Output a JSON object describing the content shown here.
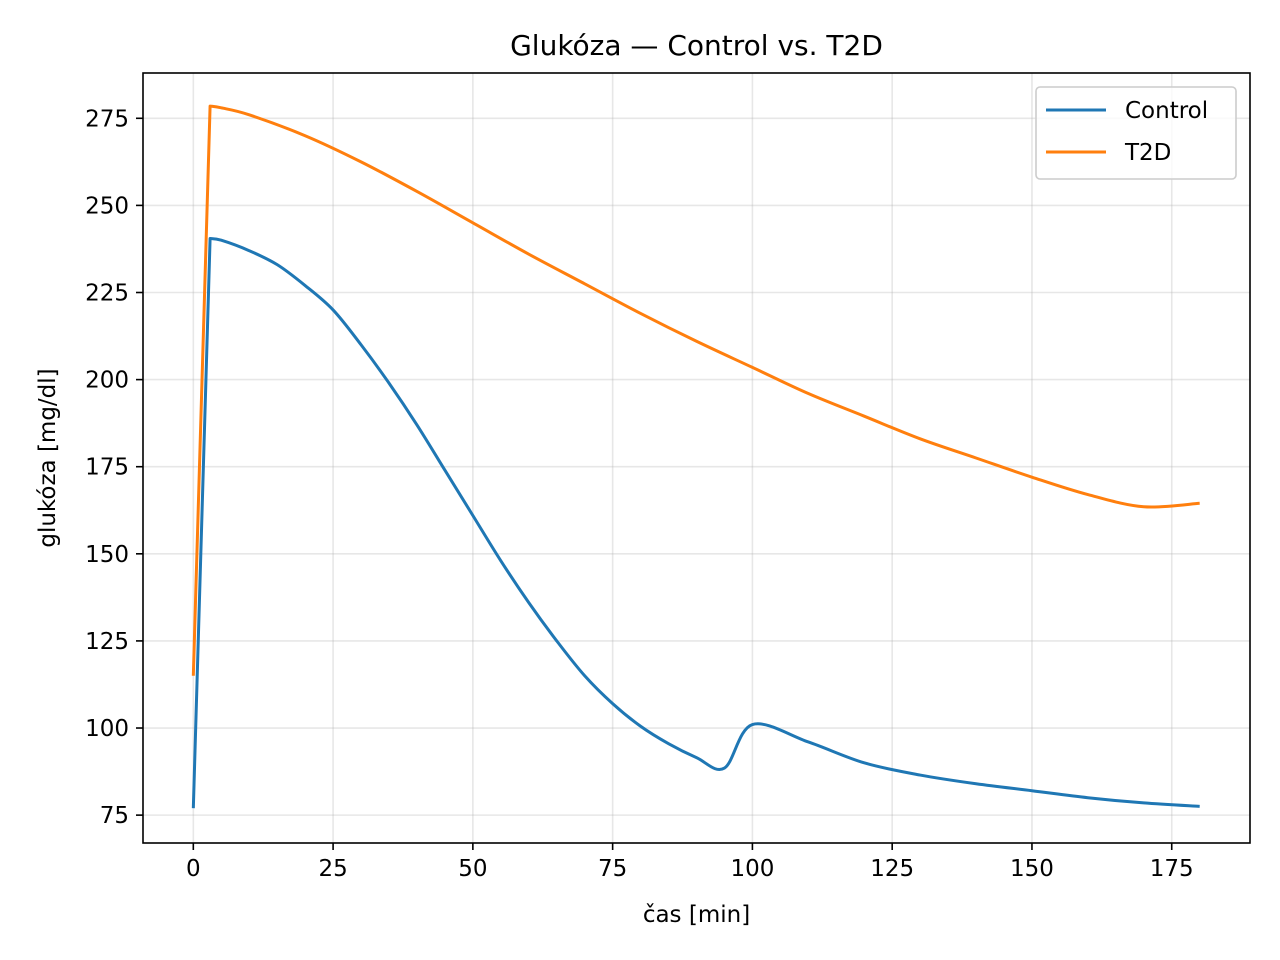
{
  "chart_data": {
    "type": "line",
    "title": "Glukóza — Control vs. T2D",
    "xlabel": "čas [min]",
    "ylabel": "glukóza [mg/dl]",
    "xlim": [
      -9,
      189
    ],
    "ylim": [
      67,
      288
    ],
    "xticks": [
      0,
      25,
      50,
      75,
      100,
      125,
      150,
      175
    ],
    "yticks": [
      75,
      100,
      125,
      150,
      175,
      200,
      225,
      250,
      275
    ],
    "grid": true,
    "legend_position": "top-right",
    "series": [
      {
        "name": "Control",
        "color": "#1f77b4",
        "x": [
          0,
          3,
          5,
          10,
          15,
          20,
          25,
          30,
          35,
          40,
          45,
          50,
          55,
          60,
          65,
          70,
          75,
          80,
          85,
          90,
          95,
          100,
          110,
          120,
          130,
          140,
          150,
          160,
          170,
          180
        ],
        "y": [
          77,
          240.5,
          240,
          237,
          233,
          227,
          220,
          210,
          199,
          187,
          174,
          161,
          148,
          136,
          125,
          115,
          107,
          100.5,
          95.5,
          91.5,
          88.5,
          101,
          96,
          90,
          86.5,
          84,
          82,
          80,
          78.5,
          77.5
        ]
      },
      {
        "name": "T2D",
        "color": "#ff7f0e",
        "x": [
          0,
          3,
          5,
          10,
          20,
          30,
          40,
          50,
          60,
          70,
          80,
          90,
          100,
          110,
          120,
          130,
          140,
          150,
          160,
          170,
          180
        ],
        "y": [
          115,
          278.5,
          278,
          276,
          270,
          262.5,
          254,
          245,
          236,
          227.5,
          219,
          211,
          203.5,
          196,
          189.5,
          183,
          177.5,
          172,
          167,
          163.5,
          164.5
        ]
      }
    ]
  }
}
